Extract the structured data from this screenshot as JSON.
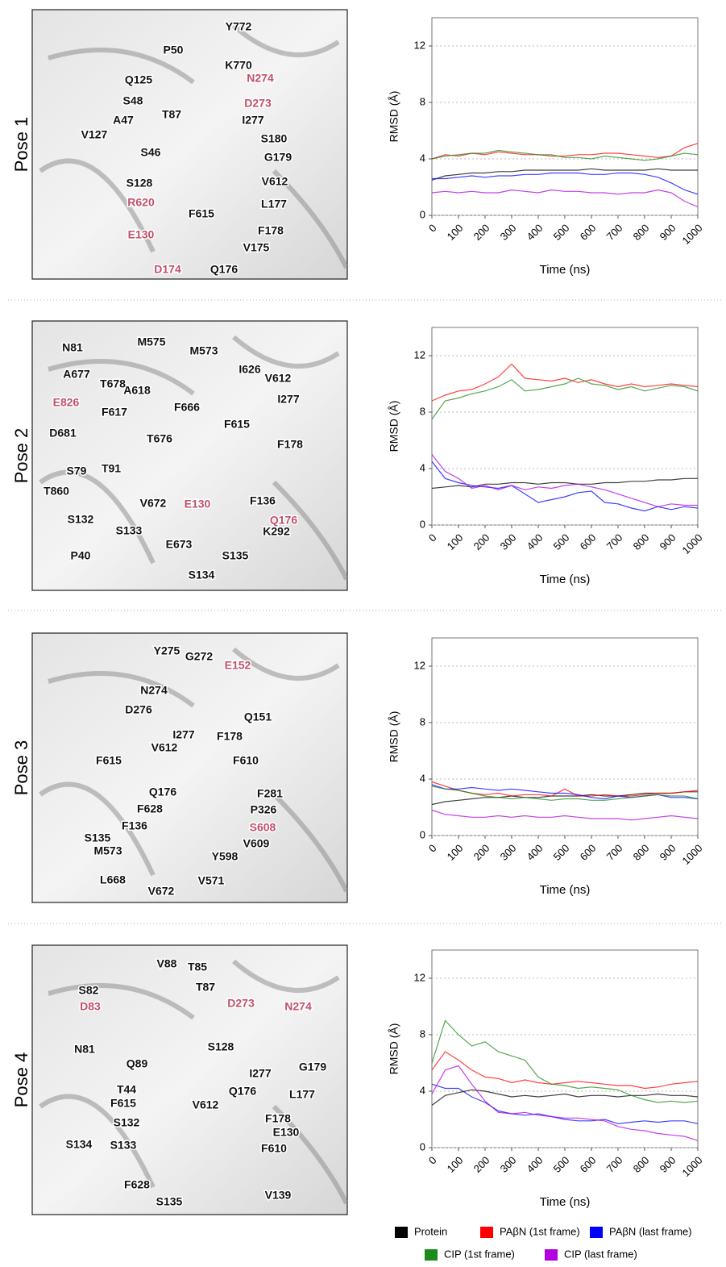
{
  "poses": [
    {
      "label": "Pose 1",
      "residues": [
        "Y772",
        "P50",
        "K770",
        "Q125",
        "S48",
        "T87",
        "I277",
        "A47",
        "V127",
        "S180",
        "G179",
        "S46",
        "S128",
        "V612",
        "L177",
        "F615",
        "F178",
        "V175",
        "Q176"
      ],
      "key_residues": [
        "N274",
        "D273",
        "R620",
        "E130",
        "D174"
      ]
    },
    {
      "label": "Pose 2",
      "residues": [
        "N81",
        "M575",
        "M573",
        "A677",
        "T678",
        "A618",
        "I626",
        "V612",
        "F666",
        "I277",
        "F617",
        "D681",
        "T676",
        "F615",
        "F178",
        "S79",
        "T91",
        "F136",
        "T860",
        "S132",
        "V672",
        "S133",
        "K292",
        "P40",
        "E673",
        "S135",
        "S134"
      ],
      "key_residues": [
        "E826",
        "E130",
        "Q176"
      ]
    },
    {
      "label": "Pose 3",
      "residues": [
        "Y275",
        "G272",
        "N274",
        "D276",
        "Q151",
        "I277",
        "F178",
        "V612",
        "F610",
        "F615",
        "F281",
        "Q176",
        "F628",
        "P326",
        "F136",
        "S135",
        "V609",
        "M573",
        "Y598",
        "L668",
        "V672",
        "V571"
      ],
      "key_residues": [
        "E152",
        "S608"
      ]
    },
    {
      "label": "Pose 4",
      "residues": [
        "V88",
        "T85",
        "S82",
        "T87",
        "N81",
        "S128",
        "Q89",
        "G179",
        "I277",
        "T44",
        "Q176",
        "L177",
        "F615",
        "V612",
        "S132",
        "F178",
        "E130",
        "S134",
        "S133",
        "F610",
        "F628",
        "S135",
        "V139"
      ],
      "key_residues": [
        "D83",
        "D273",
        "N274"
      ]
    }
  ],
  "legend": [
    {
      "name": "Protein",
      "color": "#000000"
    },
    {
      "name": "PAβN (1st frame)",
      "color": "#ff0000"
    },
    {
      "name": "PAβN (last frame)",
      "color": "#0000ff"
    },
    {
      "name": "CIP (1st frame)",
      "color": "#1a8a1a"
    },
    {
      "name": "CIP (last frame)",
      "color": "#b200e0"
    }
  ],
  "chart_data": [
    {
      "type": "line",
      "ylabel": "RMSD (Å)",
      "xlabel": "Time (ns)",
      "xlim": [
        0,
        1000
      ],
      "ylim": [
        0,
        14
      ],
      "xticks": [
        0,
        100,
        200,
        300,
        400,
        500,
        600,
        700,
        800,
        900,
        1000
      ],
      "yticks": [
        0,
        4,
        8,
        12
      ],
      "grid": true,
      "x": [
        0,
        50,
        100,
        150,
        200,
        250,
        300,
        350,
        400,
        450,
        500,
        550,
        600,
        650,
        700,
        750,
        800,
        850,
        900,
        950,
        1000
      ],
      "series": [
        {
          "color": "#000000",
          "values": [
            2.5,
            2.8,
            2.9,
            3.0,
            3.0,
            3.1,
            3.1,
            3.2,
            3.2,
            3.2,
            3.2,
            3.2,
            3.3,
            3.2,
            3.2,
            3.2,
            3.2,
            3.3,
            3.2,
            3.2,
            3.2
          ]
        },
        {
          "color": "#ff0000",
          "values": [
            4.0,
            4.3,
            4.2,
            4.4,
            4.3,
            4.5,
            4.4,
            4.3,
            4.3,
            4.2,
            4.2,
            4.3,
            4.3,
            4.4,
            4.4,
            4.3,
            4.2,
            4.1,
            4.2,
            4.8,
            5.1
          ]
        },
        {
          "color": "#0000ff",
          "values": [
            2.6,
            2.6,
            2.7,
            2.8,
            2.7,
            2.8,
            2.8,
            2.9,
            2.9,
            3.0,
            3.0,
            3.0,
            2.9,
            2.9,
            3.0,
            3.0,
            2.9,
            2.7,
            2.3,
            1.8,
            1.5
          ]
        },
        {
          "color": "#1a8a1a",
          "values": [
            4.0,
            4.2,
            4.3,
            4.4,
            4.4,
            4.6,
            4.5,
            4.4,
            4.3,
            4.3,
            4.1,
            4.1,
            4.0,
            4.2,
            4.1,
            4.0,
            3.9,
            4.0,
            4.2,
            4.4,
            4.3
          ]
        },
        {
          "color": "#b200e0",
          "values": [
            1.6,
            1.7,
            1.6,
            1.7,
            1.6,
            1.6,
            1.8,
            1.7,
            1.6,
            1.8,
            1.7,
            1.7,
            1.6,
            1.6,
            1.5,
            1.6,
            1.6,
            1.8,
            1.6,
            1.0,
            0.6
          ]
        }
      ]
    },
    {
      "type": "line",
      "ylabel": "RMSD (Å)",
      "xlabel": "Time (ns)",
      "xlim": [
        0,
        1000
      ],
      "ylim": [
        0,
        14
      ],
      "xticks": [
        0,
        100,
        200,
        300,
        400,
        500,
        600,
        700,
        800,
        900,
        1000
      ],
      "yticks": [
        0,
        4,
        8,
        12
      ],
      "grid": true,
      "x": [
        0,
        50,
        100,
        150,
        200,
        250,
        300,
        350,
        400,
        450,
        500,
        550,
        600,
        650,
        700,
        750,
        800,
        850,
        900,
        950,
        1000
      ],
      "series": [
        {
          "color": "#000000",
          "values": [
            2.6,
            2.7,
            2.8,
            2.7,
            2.9,
            2.9,
            3.0,
            3.0,
            2.9,
            3.0,
            3.0,
            2.9,
            2.9,
            3.0,
            3.0,
            3.1,
            3.1,
            3.2,
            3.2,
            3.3,
            3.3
          ]
        },
        {
          "color": "#ff0000",
          "values": [
            8.8,
            9.2,
            9.5,
            9.6,
            10.0,
            10.5,
            11.4,
            10.4,
            10.3,
            10.2,
            10.4,
            10.1,
            10.3,
            10.0,
            9.8,
            10.0,
            9.8,
            9.9,
            10.0,
            9.9,
            9.8
          ]
        },
        {
          "color": "#0000ff",
          "values": [
            4.5,
            3.3,
            3.0,
            2.8,
            2.7,
            2.6,
            2.8,
            2.2,
            1.6,
            1.8,
            2.0,
            2.3,
            2.4,
            1.6,
            1.5,
            1.2,
            1.0,
            1.3,
            1.1,
            1.3,
            1.2
          ]
        },
        {
          "color": "#1a8a1a",
          "values": [
            7.5,
            8.8,
            9.0,
            9.3,
            9.5,
            9.8,
            10.3,
            9.5,
            9.6,
            9.8,
            10.0,
            10.4,
            10.0,
            9.9,
            9.6,
            9.8,
            9.5,
            9.7,
            9.9,
            9.8,
            9.5
          ]
        },
        {
          "color": "#b200e0",
          "values": [
            5.0,
            3.8,
            3.3,
            2.6,
            2.8,
            2.5,
            2.8,
            2.5,
            2.7,
            2.6,
            2.8,
            2.9,
            2.7,
            2.5,
            2.2,
            1.9,
            1.6,
            1.3,
            1.5,
            1.4,
            1.4
          ]
        }
      ]
    },
    {
      "type": "line",
      "ylabel": "RMSD (Å)",
      "xlabel": "Time (ns)",
      "xlim": [
        0,
        1000
      ],
      "ylim": [
        0,
        14
      ],
      "xticks": [
        0,
        100,
        200,
        300,
        400,
        500,
        600,
        700,
        800,
        900,
        1000
      ],
      "yticks": [
        0,
        4,
        8,
        12
      ],
      "grid": true,
      "x": [
        0,
        50,
        100,
        150,
        200,
        250,
        300,
        350,
        400,
        450,
        500,
        550,
        600,
        650,
        700,
        750,
        800,
        850,
        900,
        950,
        1000
      ],
      "series": [
        {
          "color": "#000000",
          "values": [
            2.2,
            2.4,
            2.5,
            2.6,
            2.7,
            2.7,
            2.8,
            2.7,
            2.7,
            2.8,
            2.8,
            2.8,
            2.9,
            2.8,
            2.8,
            2.9,
            3.0,
            3.0,
            3.0,
            3.1,
            3.1
          ]
        },
        {
          "color": "#ff0000",
          "values": [
            3.8,
            3.5,
            3.2,
            3.0,
            2.9,
            3.0,
            2.8,
            2.9,
            2.9,
            2.8,
            3.3,
            2.8,
            2.8,
            2.9,
            2.8,
            2.8,
            2.9,
            3.0,
            3.0,
            3.1,
            3.2
          ]
        },
        {
          "color": "#0000ff",
          "values": [
            3.6,
            3.3,
            3.3,
            3.4,
            3.3,
            3.2,
            3.3,
            3.2,
            3.1,
            3.0,
            3.0,
            2.9,
            2.7,
            2.6,
            2.8,
            2.7,
            2.8,
            2.9,
            2.7,
            2.7,
            2.6
          ]
        },
        {
          "color": "#1a8a1a",
          "values": [
            3.5,
            3.3,
            3.2,
            3.0,
            2.8,
            2.7,
            2.6,
            2.7,
            2.6,
            2.5,
            2.6,
            2.6,
            2.5,
            2.5,
            2.6,
            2.7,
            2.8,
            2.9,
            2.8,
            2.8,
            2.6
          ]
        },
        {
          "color": "#b200e0",
          "values": [
            1.8,
            1.5,
            1.4,
            1.3,
            1.3,
            1.4,
            1.3,
            1.4,
            1.3,
            1.3,
            1.4,
            1.3,
            1.2,
            1.2,
            1.2,
            1.1,
            1.2,
            1.3,
            1.4,
            1.3,
            1.2
          ]
        }
      ]
    },
    {
      "type": "line",
      "ylabel": "RMSD (Å)",
      "xlabel": "Time (ns)",
      "xlim": [
        0,
        1000
      ],
      "ylim": [
        0,
        14
      ],
      "xticks": [
        0,
        100,
        200,
        300,
        400,
        500,
        600,
        700,
        800,
        900,
        1000
      ],
      "yticks": [
        0,
        4,
        8,
        12
      ],
      "grid": true,
      "x": [
        0,
        50,
        100,
        150,
        200,
        250,
        300,
        350,
        400,
        450,
        500,
        550,
        600,
        650,
        700,
        750,
        800,
        850,
        900,
        950,
        1000
      ],
      "series": [
        {
          "color": "#000000",
          "values": [
            3.0,
            3.7,
            3.9,
            4.1,
            4.0,
            3.8,
            3.6,
            3.7,
            3.6,
            3.7,
            3.8,
            3.6,
            3.7,
            3.7,
            3.6,
            3.7,
            3.7,
            3.8,
            3.7,
            3.7,
            3.6
          ]
        },
        {
          "color": "#ff0000",
          "values": [
            5.5,
            6.8,
            6.2,
            5.5,
            5.0,
            4.9,
            4.6,
            4.8,
            4.6,
            4.5,
            4.6,
            4.7,
            4.6,
            4.5,
            4.4,
            4.4,
            4.2,
            4.3,
            4.5,
            4.6,
            4.7
          ]
        },
        {
          "color": "#0000ff",
          "values": [
            4.5,
            4.2,
            4.2,
            3.6,
            3.2,
            2.6,
            2.4,
            2.3,
            2.4,
            2.2,
            2.0,
            1.9,
            1.9,
            2.0,
            1.7,
            1.8,
            1.9,
            1.8,
            1.9,
            1.9,
            1.7
          ]
        },
        {
          "color": "#1a8a1a",
          "values": [
            6.0,
            9.0,
            8.0,
            7.2,
            7.5,
            6.8,
            6.5,
            6.2,
            5.0,
            4.5,
            4.4,
            4.2,
            4.3,
            4.2,
            4.1,
            3.7,
            3.4,
            3.2,
            3.3,
            3.2,
            3.3
          ]
        },
        {
          "color": "#b200e0",
          "values": [
            3.8,
            5.5,
            5.8,
            4.5,
            3.3,
            2.5,
            2.4,
            2.5,
            2.3,
            2.2,
            2.1,
            2.1,
            2.0,
            1.9,
            1.5,
            1.3,
            1.2,
            1.0,
            0.9,
            0.8,
            0.5
          ]
        }
      ]
    }
  ]
}
